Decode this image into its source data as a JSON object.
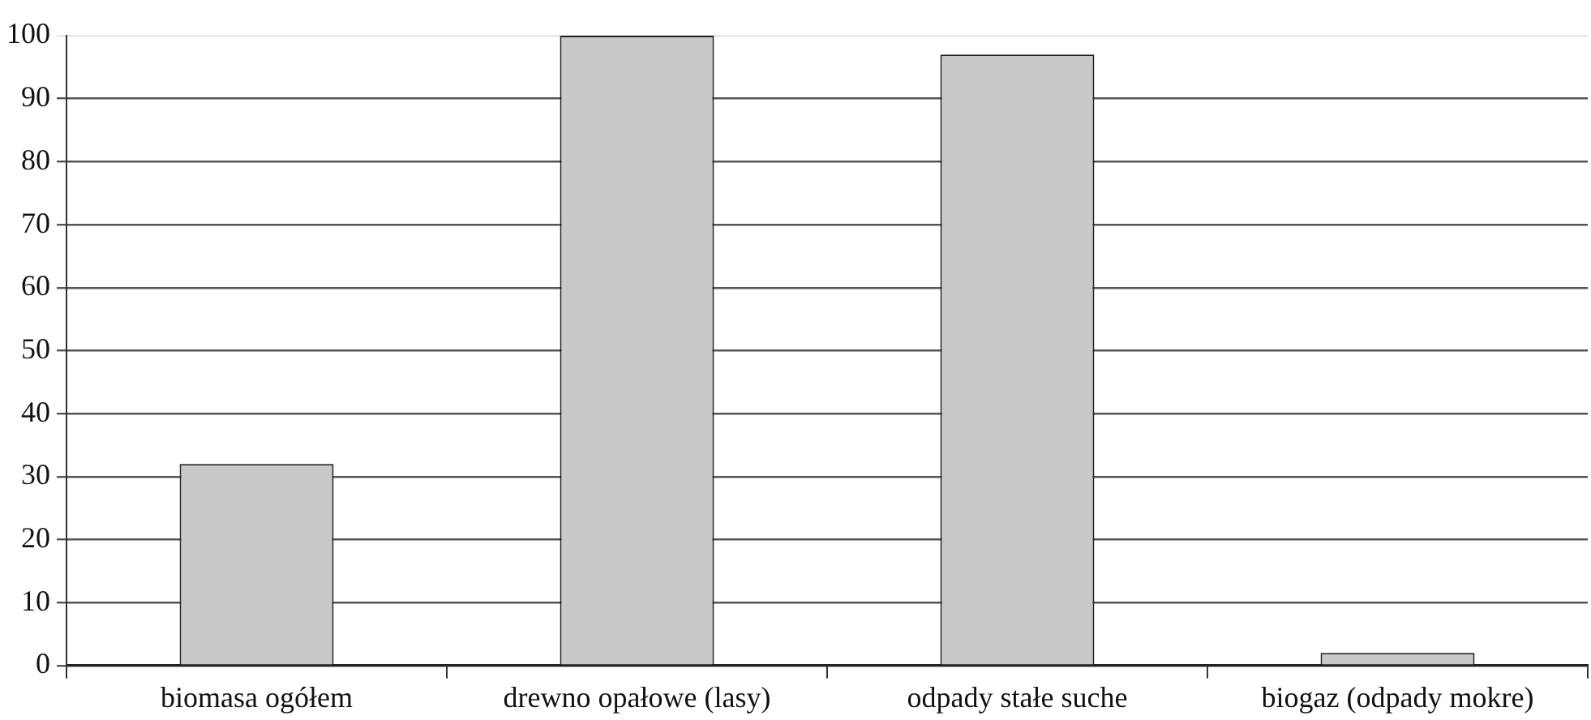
{
  "chart_data": {
    "type": "bar",
    "categories": [
      "biomasa ogółem",
      "drewno opałowe (lasy)",
      "odpady stałe suche",
      "biogaz (odpady mokre)"
    ],
    "values": [
      32,
      100,
      97,
      2
    ],
    "color": "#c8c9cb",
    "ylim": [
      0,
      100
    ],
    "yticks": [
      0,
      10,
      20,
      30,
      40,
      50,
      60,
      70,
      80,
      90,
      100
    ],
    "grid": "y"
  }
}
